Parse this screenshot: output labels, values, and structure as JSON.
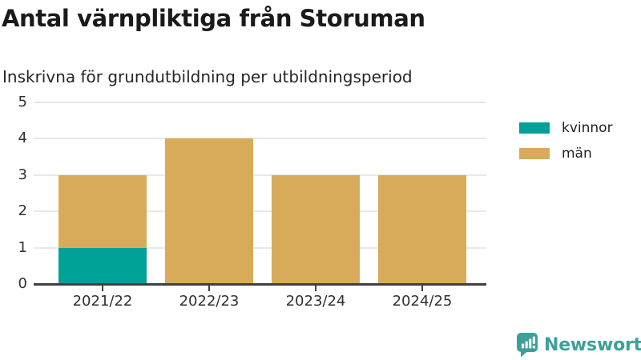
{
  "header": {
    "title": "Antal värnpliktiga från Storuman",
    "subtitle": "Inskrivna för grundutbildning per utbildningsperiod"
  },
  "chart_data": {
    "type": "bar",
    "stacked": true,
    "title": "Antal värnpliktiga från Storuman",
    "subtitle": "Inskrivna för grundutbildning per utbildningsperiod",
    "categories": [
      "2021/22",
      "2022/23",
      "2023/24",
      "2024/25"
    ],
    "series": [
      {
        "name": "kvinnor",
        "color": "#00a196",
        "values": [
          1,
          0,
          0,
          0
        ]
      },
      {
        "name": "män",
        "color": "#d8ab5a",
        "values": [
          2,
          4,
          3,
          3
        ]
      }
    ],
    "totals": [
      3,
      4,
      3,
      3
    ],
    "xlabel": "",
    "ylabel": "",
    "ylim": [
      0,
      5
    ],
    "yticks": [
      0,
      1,
      2,
      3,
      4,
      5
    ],
    "grid": true,
    "legend_position": "right"
  },
  "branding": {
    "logo_text": "Newsworthy",
    "logo_color": "#3d9f99"
  },
  "colors": {
    "background": "#ffffff",
    "title_text": "#1a1a1a",
    "axis_text": "#303030",
    "gridline": "#e8e8e8",
    "axis_line": "#404040",
    "kvinnor": "#00a196",
    "man": "#d8ab5a"
  }
}
